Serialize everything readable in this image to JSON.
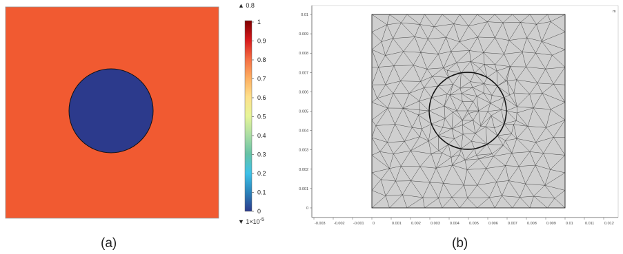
{
  "panel_a": {
    "caption": "(a)",
    "colors": {
      "background": "#f15a31",
      "circle": "#2c3a8c",
      "outline": "#111111"
    },
    "colorbar": {
      "max_marker": "▲ 0.8",
      "min_marker": "▼ 1×10",
      "min_marker_exponent": "-5",
      "ticks": [
        "1",
        "0.9",
        "0.8",
        "0.7",
        "0.6",
        "0.5",
        "0.4",
        "0.3",
        "0.2",
        "0.1",
        "0"
      ],
      "stops": [
        "#7f0000",
        "#d7191c",
        "#f46d43",
        "#fdae61",
        "#fee08b",
        "#e6f598",
        "#abdda4",
        "#66c2a5",
        "#3ec1e8",
        "#2b83ba",
        "#2c3a8c"
      ]
    }
  },
  "panel_b": {
    "caption": "(b)",
    "colors": {
      "domain_fill": "#cfcfcf",
      "mesh_line": "#333333",
      "circle": "#111111"
    },
    "x_ticks": [
      "-0.003",
      "-0.002",
      "-0.001",
      "0",
      "0.001",
      "0.002",
      "0.003",
      "0.004",
      "0.005",
      "0.006",
      "0.007",
      "0.008",
      "0.009",
      "0.01",
      "0.011",
      "0.012"
    ],
    "y_ticks": [
      "0.01",
      "0.009",
      "0.008",
      "0.007",
      "0.006",
      "0.005",
      "0.004",
      "0.003",
      "0.002",
      "0.001",
      "0"
    ],
    "corner_mark": "m"
  }
}
